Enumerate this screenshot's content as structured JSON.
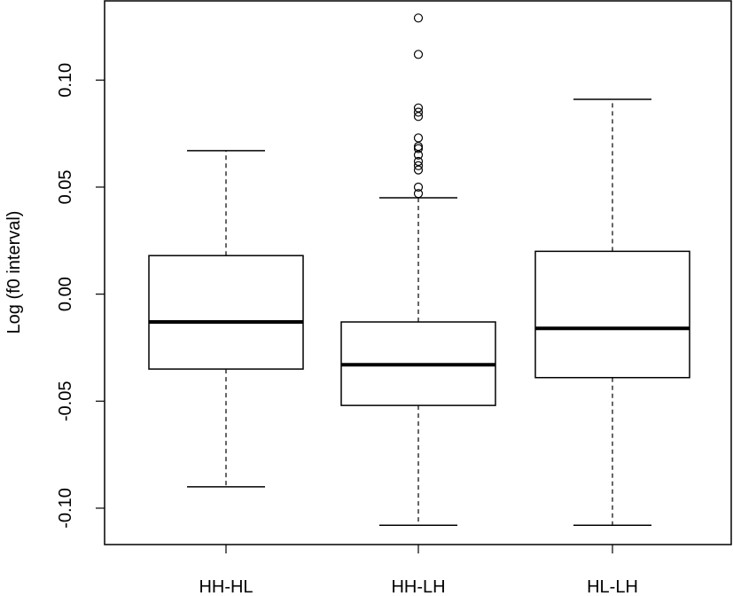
{
  "chart_data": {
    "type": "box",
    "title": "",
    "xlabel": "",
    "ylabel": "Log (f0 interval)",
    "ylim": [
      -0.117,
      0.137
    ],
    "yticks": [
      -0.1,
      -0.05,
      0.0,
      0.05,
      0.1
    ],
    "ytick_labels": [
      "-0.10",
      "-0.05",
      "0.00",
      "0.05",
      "0.10"
    ],
    "grid": false,
    "categories": [
      "HH-HL",
      "HH-LH",
      "HL-LH"
    ],
    "boxes": [
      {
        "category": "HH-HL",
        "whisker_low": -0.09,
        "q1": -0.035,
        "median": -0.013,
        "q3": 0.018,
        "whisker_high": 0.067,
        "outliers": []
      },
      {
        "category": "HH-LH",
        "whisker_low": -0.108,
        "q1": -0.052,
        "median": -0.033,
        "q3": -0.013,
        "whisker_high": 0.045,
        "outliers": [
          0.047,
          0.05,
          0.058,
          0.06,
          0.062,
          0.065,
          0.068,
          0.069,
          0.073,
          0.083,
          0.085,
          0.087,
          0.112,
          0.129
        ]
      },
      {
        "category": "HL-LH",
        "whisker_low": -0.108,
        "q1": -0.039,
        "median": -0.016,
        "q3": 0.02,
        "whisker_high": 0.091,
        "outliers": []
      }
    ]
  }
}
